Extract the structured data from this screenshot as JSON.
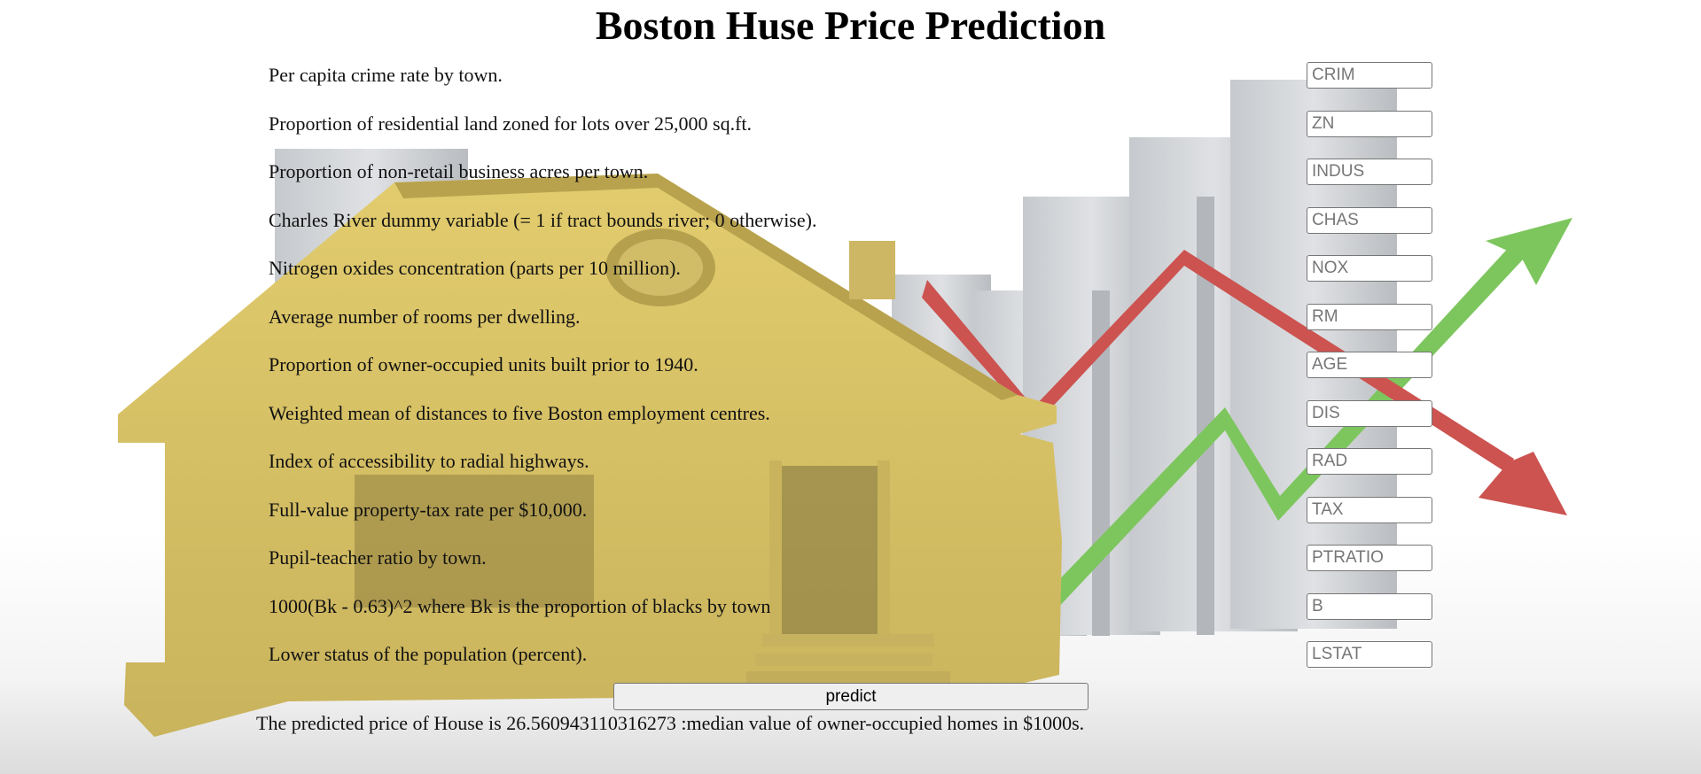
{
  "page": {
    "title": "Boston Huse Price Prediction",
    "predict_label": "predict",
    "result_text": "The predicted price of House is 26.560943110316273 :median value of owner-occupied homes in $1000s."
  },
  "fields": [
    {
      "label": "Per capita crime rate by town.",
      "placeholder": "CRIM"
    },
    {
      "label": "Proportion of residential land zoned for lots over 25,000 sq.ft.",
      "placeholder": "ZN"
    },
    {
      "label": "Proportion of non-retail business acres per town.",
      "placeholder": "INDUS"
    },
    {
      "label": "Charles River dummy variable (= 1 if tract bounds river; 0 otherwise).",
      "placeholder": "CHAS"
    },
    {
      "label": "Nitrogen oxides concentration (parts per 10 million).",
      "placeholder": "NOX"
    },
    {
      "label": "Average number of rooms per dwelling.",
      "placeholder": "RM"
    },
    {
      "label": "Proportion of owner-occupied units built prior to 1940.",
      "placeholder": "AGE"
    },
    {
      "label": "Weighted mean of distances to five Boston employment centres.",
      "placeholder": "DIS"
    },
    {
      "label": "Index of accessibility to radial highways.",
      "placeholder": "RAD"
    },
    {
      "label": "Full-value property-tax rate per $10,000.",
      "placeholder": "TAX"
    },
    {
      "label": "Pupil-teacher ratio by town.",
      "placeholder": "PTRATIO"
    },
    {
      "label": "1000(Bk - 0.63)^2 where Bk is the proportion of blacks by town",
      "placeholder": "B"
    },
    {
      "label": "Lower status of the population (percent).",
      "placeholder": "LSTAT"
    }
  ],
  "colors": {
    "house": "#d4c06a",
    "arrow_up": "#7dc65e",
    "arrow_down": "#cc5350",
    "bars": "#d3d6da"
  },
  "background": {
    "icon": "house-chart-background-illustration"
  }
}
